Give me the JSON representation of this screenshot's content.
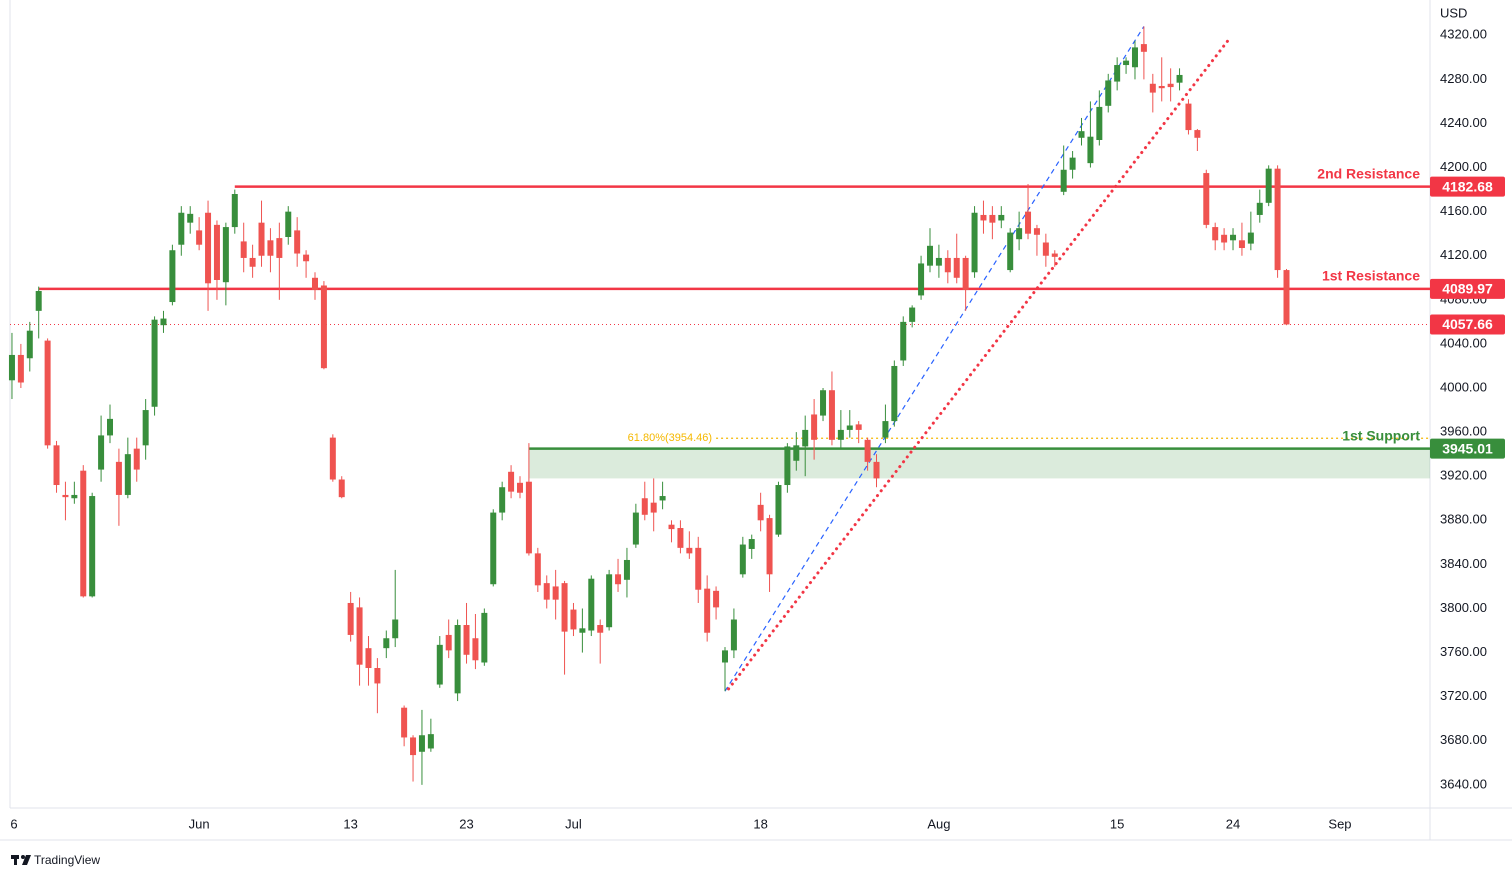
{
  "chart_data": {
    "type": "candlestick",
    "currency": "USD",
    "brand": "TradingView",
    "up_color": "#388e3c",
    "down_color": "#ef5350",
    "open": [
      4007,
      4030,
      4027,
      4070,
      4043,
      3948,
      3903,
      3900,
      3925,
      3811,
      3926,
      3957,
      3933,
      3903,
      3945,
      3948,
      3983,
      4057,
      4078,
      4130,
      4150,
      4143,
      4159,
      4148,
      4096,
      4146,
      4133,
      4118,
      4150,
      4134,
      4136,
      4137,
      4143,
      4121,
      4100,
      4093,
      3955,
      3917,
      3805,
      3801,
      3764,
      3746,
      3764,
      3773,
      3710,
      3683,
      3670,
      3673,
      3731,
      3776,
      3723,
      3785,
      3773,
      3751,
      3822,
      3887,
      3924,
      3914,
      3915,
      3850,
      3823,
      3820,
      3823,
      3799,
      3778,
      3780,
      3785,
      3783,
      3831,
      3826,
      3858,
      3900,
      3896,
      3898,
      3876,
      3873,
      3855,
      3855,
      3818,
      3816,
      3751,
      3762,
      3831,
      3854,
      3894,
      3882,
      3867,
      3912,
      3934,
      3947,
      3976,
      3975,
      3998,
      3953,
      3962,
      3967,
      3953,
      3933,
      3955,
      3970,
      4025,
      4060,
      4084,
      4111,
      4111,
      4118,
      4118,
      4118,
      4105,
      4157,
      4157,
      4152,
      4107,
      4135,
      4160,
      4145,
      4132,
      4122,
      4178,
      4198,
      4227,
      4204,
      4225,
      4256,
      4278,
      4293,
      4291,
      4312,
      4276,
      4274,
      4276,
      4277,
      4258,
      4234,
      4195,
      4146,
      4139,
      4134,
      4134,
      4131,
      4157,
      4168,
      4199,
      4107
    ],
    "high": [
      4050,
      4040,
      4060,
      4092,
      4045,
      3952,
      3915,
      3915,
      3930,
      3905,
      3975,
      3985,
      3945,
      3955,
      3955,
      3990,
      4065,
      4070,
      4130,
      4165,
      4165,
      4155,
      4170,
      4152,
      4150,
      4180,
      4150,
      4130,
      4170,
      4145,
      4150,
      4165,
      4155,
      4125,
      4105,
      4097,
      3958,
      3920,
      3815,
      3810,
      3775,
      3755,
      3780,
      3835,
      3712,
      3685,
      3708,
      3700,
      3775,
      3790,
      3790,
      3805,
      3795,
      3800,
      3890,
      3915,
      3930,
      3920,
      3950,
      3855,
      3830,
      3835,
      3825,
      3805,
      3800,
      3830,
      3790,
      3835,
      3845,
      3855,
      3895,
      3915,
      3918,
      3915,
      3880,
      3880,
      3870,
      3865,
      3830,
      3820,
      3765,
      3800,
      3865,
      3867,
      3905,
      3885,
      3915,
      3950,
      3960,
      3975,
      3990,
      4000,
      4015,
      3980,
      3980,
      3970,
      3955,
      3940,
      3985,
      4025,
      4065,
      4075,
      4120,
      4145,
      4130,
      4125,
      4140,
      4120,
      4165,
      4170,
      4165,
      4165,
      4145,
      4160,
      4185,
      4148,
      4140,
      4125,
      4220,
      4215,
      4245,
      4260,
      4270,
      4285,
      4300,
      4300,
      4315,
      4328,
      4285,
      4300,
      4290,
      4290,
      4262,
      4235,
      4198,
      4150,
      4145,
      4145,
      4150,
      4160,
      4180,
      4202,
      4202,
      4108
    ],
    "low": [
      3990,
      4000,
      4015,
      4045,
      3945,
      3905,
      3880,
      3895,
      3810,
      3810,
      3915,
      3950,
      3875,
      3900,
      3915,
      3935,
      3975,
      4050,
      4075,
      4120,
      4140,
      4125,
      4070,
      4080,
      4075,
      4140,
      4105,
      4100,
      4110,
      4105,
      4080,
      4130,
      4110,
      4100,
      4080,
      4017,
      3915,
      3900,
      3770,
      3730,
      3730,
      3705,
      3755,
      3765,
      3675,
      3643,
      3640,
      3670,
      3728,
      3755,
      3716,
      3750,
      3745,
      3748,
      3820,
      3880,
      3900,
      3900,
      3848,
      3815,
      3800,
      3790,
      3740,
      3775,
      3760,
      3775,
      3750,
      3780,
      3815,
      3810,
      3855,
      3880,
      3870,
      3890,
      3860,
      3850,
      3845,
      3805,
      3770,
      3790,
      3725,
      3755,
      3828,
      3845,
      3870,
      3815,
      3865,
      3905,
      3925,
      3920,
      3935,
      3970,
      3948,
      3945,
      3955,
      3950,
      3925,
      3910,
      3950,
      3965,
      4020,
      4055,
      4080,
      4105,
      4100,
      4095,
      4095,
      4070,
      4100,
      4140,
      4135,
      4145,
      4105,
      4125,
      4135,
      4120,
      4110,
      4110,
      4175,
      4190,
      4220,
      4200,
      4220,
      4250,
      4270,
      4285,
      4280,
      4280,
      4250,
      4260,
      4260,
      4270,
      4230,
      4215,
      4145,
      4125,
      4125,
      4125,
      4120,
      4125,
      4150,
      4165,
      4100,
      4057
    ],
    "close": [
      4030,
      4005,
      4052,
      4088,
      3948,
      3912,
      3901,
      3903,
      3811,
      3902,
      3957,
      3972,
      3903,
      3940,
      3926,
      3980,
      4062,
      4063,
      4125,
      4159,
      4158,
      4130,
      4095,
      4098,
      4146,
      4176,
      4118,
      4110,
      4120,
      4120,
      4118,
      4160,
      4122,
      4115,
      4089,
      4018,
      3917,
      3901,
      3776,
      3749,
      3746,
      3732,
      3773,
      3790,
      3683,
      3667,
      3685,
      3686,
      3767,
      3762,
      3785,
      3758,
      3753,
      3796,
      3887,
      3910,
      3906,
      3905,
      3850,
      3821,
      3808,
      3808,
      3779,
      3781,
      3782,
      3827,
      3778,
      3831,
      3822,
      3844,
      3887,
      3885,
      3887,
      3902,
      3872,
      3855,
      3850,
      3817,
      3778,
      3801,
      3762,
      3790,
      3858,
      3863,
      3880,
      3831,
      3912,
      3947,
      3948,
      3962,
      3953,
      3998,
      3953,
      3962,
      3966,
      3962,
      3933,
      3918,
      3970,
      4020,
      4060,
      4073,
      4113,
      4129,
      4118,
      4105,
      4100,
      4089,
      4159,
      4152,
      4150,
      4157,
      4141,
      4145,
      4140,
      4139,
      4120,
      4119,
      4198,
      4209,
      4233,
      4228,
      4255,
      4279,
      4293,
      4297,
      4309,
      4305,
      4268,
      4272,
      4273,
      4284,
      4234,
      4227,
      4148,
      4134,
      4132,
      4139,
      4127,
      4141,
      4168,
      4199,
      4107,
      4057.66
    ],
    "last_price_color": "#f23645",
    "xlim": [
      -0.22,
      159.1
    ],
    "xticks": [
      {
        "value": 0,
        "label": "6"
      },
      {
        "value": 21,
        "label": "Jun"
      },
      {
        "value": 38,
        "label": "13"
      },
      {
        "value": 51,
        "label": "23"
      },
      {
        "value": 63,
        "label": "Jul"
      },
      {
        "value": 84,
        "label": "18"
      },
      {
        "value": 104,
        "label": "Aug"
      },
      {
        "value": 124,
        "label": "15"
      },
      {
        "value": 137,
        "label": "24"
      },
      {
        "value": 149,
        "label": "Sep"
      }
    ],
    "ylim": [
      3619,
      4352
    ],
    "yticks": [
      {
        "value": 3640,
        "label": "3640.00"
      },
      {
        "value": 3680,
        "label": "3680.00"
      },
      {
        "value": 3720,
        "label": "3720.00"
      },
      {
        "value": 3760,
        "label": "3760.00"
      },
      {
        "value": 3800,
        "label": "3800.00"
      },
      {
        "value": 3840,
        "label": "3840.00"
      },
      {
        "value": 3880,
        "label": "3880.00"
      },
      {
        "value": 3920,
        "label": "3920.00"
      },
      {
        "value": 3960,
        "label": "3960.00"
      },
      {
        "value": 4000,
        "label": "4000.00"
      },
      {
        "value": 4040,
        "label": "4040.00"
      },
      {
        "value": 4080,
        "label": "4080.00"
      },
      {
        "value": 4120,
        "label": "4120.00"
      },
      {
        "value": 4160,
        "label": "4160.00"
      },
      {
        "value": 4200,
        "label": "4200.00"
      },
      {
        "value": 4240,
        "label": "4240.00"
      },
      {
        "value": 4280,
        "label": "4280.00"
      },
      {
        "value": 4320,
        "label": "4320.00"
      }
    ],
    "levels": [
      {
        "label": "2nd Resistance",
        "value": 4182.68,
        "start": 25,
        "color": "#f23645"
      },
      {
        "label": "1st Resistance",
        "value": 4089.97,
        "start": 3,
        "color": "#f23645"
      },
      {
        "label": "1st Support",
        "value": 3945.01,
        "start": 58,
        "zone_low": 3918,
        "color": "#388e3c"
      }
    ],
    "fib": {
      "label": "61.80%(3954.46)",
      "value": 3954.46,
      "start": 79,
      "color": "#f5b800"
    },
    "trendlines": [
      {
        "x": [
          80,
          127
        ],
        "y": [
          3725,
          4328
        ],
        "color": "#2962ff",
        "style": "dashed"
      },
      {
        "x": [
          80.4,
          136.7
        ],
        "y": [
          3727,
          4318
        ],
        "color": "#f23645",
        "style": "dotted"
      }
    ]
  }
}
